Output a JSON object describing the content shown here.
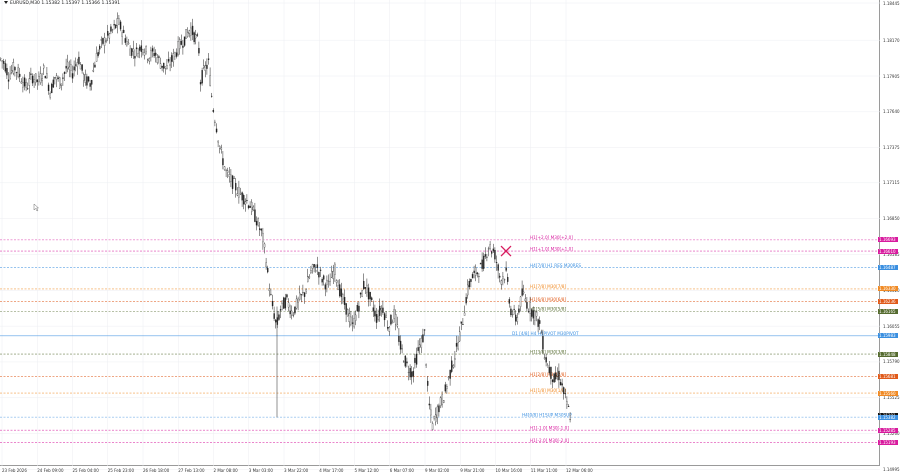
{
  "window": {
    "symbol_line": "EURUSD,M30  1.15382 1.15397 1.15366 1.15391"
  },
  "price_axis": {
    "min": 1.1505,
    "max": 1.18445,
    "ticks": [
      "1.18445",
      "1.18170",
      "1.17905",
      "1.17640",
      "1.17375",
      "1.17115",
      "1.16850",
      "1.16585",
      "1.16320",
      "1.16055",
      "1.15790",
      "1.15525",
      "1.15260",
      "1.14995"
    ],
    "tags": [
      {
        "value": "1.16693",
        "color": "#d81b9e"
      },
      {
        "value": "1.16610",
        "color": "#d81b9e"
      },
      {
        "value": "1.16487",
        "color": "#3a8fe0"
      },
      {
        "value": "1.16330",
        "color": "#f08a24"
      },
      {
        "value": "1.16236",
        "color": "#e05a1a"
      },
      {
        "value": "1.16165",
        "color": "#556b2f"
      },
      {
        "value": "1.15983",
        "color": "#3a8fe0"
      },
      {
        "value": "1.15848",
        "color": "#556b2f"
      },
      {
        "value": "1.15681",
        "color": "#e05a1a"
      },
      {
        "value": "1.15560",
        "color": "#f08a24"
      },
      {
        "value": "1.15391",
        "color": "#111111"
      },
      {
        "value": "1.15382",
        "color": "#3a8fe0"
      },
      {
        "value": "1.15285",
        "color": "#d81b9e"
      },
      {
        "value": "1.15193",
        "color": "#d81b9e"
      }
    ]
  },
  "time_axis": {
    "labels": [
      "23 Feb 2026",
      "24 Feb 09:00",
      "25 Feb 04:00",
      "25 Feb 23:00",
      "26 Feb 18:00",
      "27 Feb 13:00",
      "2 Mar 08:00",
      "3 Mar 03:00",
      "3 Mar 22:00",
      "4 Mar 17:00",
      "5 Mar 12:00",
      "6 Mar 07:00",
      "9 Mar 02:00",
      "9 Mar 21:00",
      "10 Mar 16:00",
      "11 Mar 11:00",
      "12 Mar 06:00"
    ]
  },
  "levels": [
    {
      "label": "H1[+2.0] M30[+2.0]",
      "price": 1.16693,
      "color": "#d81b9e"
    },
    {
      "label": "H1[+1.0] M30[+1.0]",
      "price": 1.1661,
      "color": "#d81b9e"
    },
    {
      "label": "H4[7/8] H1 RES M30RES",
      "price": 1.16487,
      "color": "#3a8fe0"
    },
    {
      "label": "H1[7/8] M30[7/8]",
      "price": 1.1633,
      "color": "#f08a24"
    },
    {
      "label": "H1[6/8] M30[6/8]",
      "price": 1.16236,
      "color": "#e05a1a"
    },
    {
      "label": "H1[5/8] M30[5/8]",
      "price": 1.16165,
      "color": "#556b2f"
    },
    {
      "label": "D1 [4/8] H4 H1PIVOT M30PIVOT",
      "price": 1.15983,
      "color": "#3a8fe0"
    },
    {
      "label": "H1[3/8] M30[3/8]",
      "price": 1.15848,
      "color": "#556b2f"
    },
    {
      "label": "H1[2/8] M30[2/8]",
      "price": 1.15681,
      "color": "#e05a1a"
    },
    {
      "label": "H1[1/8] M30[1/8]",
      "price": 1.1556,
      "color": "#f08a24"
    },
    {
      "label": "H4[0/8] H1SUP M30SUP",
      "price": 1.15382,
      "color": "#3a8fe0"
    },
    {
      "label": "H1[-1.0] M30[-1.0]",
      "price": 1.15285,
      "color": "#d81b9e"
    },
    {
      "label": "H1[-2.0] M30[-2.0]",
      "price": 1.15193,
      "color": "#d81b9e"
    }
  ],
  "marker": {
    "type": "cross",
    "color": "#d81b5e",
    "price": 1.1661
  },
  "colors": {
    "grid": "#eceef2",
    "candle": "#222222",
    "axis": "#9a9a9a"
  }
}
